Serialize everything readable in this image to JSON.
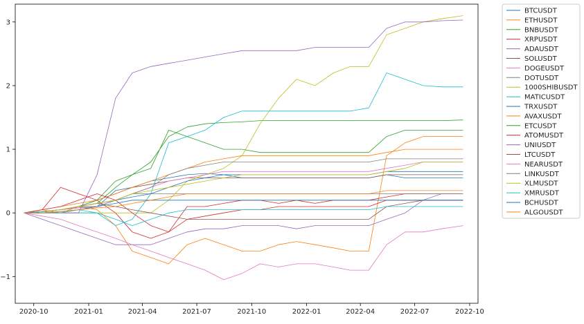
{
  "chart_data": {
    "type": "line",
    "title": "",
    "xlabel": "",
    "ylabel": "",
    "grid": false,
    "legend_position": "outside-right",
    "xlim": [
      "2020-08-31",
      "2022-10-15"
    ],
    "ylim": [
      -1.42,
      3.28
    ],
    "x_ticks": [
      "2020-10",
      "2021-01",
      "2021-04",
      "2021-07",
      "2021-10",
      "2022-01",
      "2022-04",
      "2022-07",
      "2022-10"
    ],
    "y_ticks": [
      -1,
      0,
      1,
      2,
      3
    ],
    "x_dates": [
      "2020-09-15",
      "2020-10-15",
      "2020-11-15",
      "2020-12-15",
      "2021-01-15",
      "2021-02-15",
      "2021-03-15",
      "2021-04-15",
      "2021-05-15",
      "2021-06-15",
      "2021-07-15",
      "2021-08-15",
      "2021-09-15",
      "2021-10-15",
      "2021-11-15",
      "2021-12-15",
      "2022-01-15",
      "2022-02-15",
      "2022-03-15",
      "2022-04-15",
      "2022-05-15",
      "2022-06-15",
      "2022-07-15",
      "2022-08-15",
      "2022-09-20"
    ],
    "series": [
      {
        "name": "BTCUSDT",
        "color": "#1f77b4",
        "values": [
          0.0,
          0.02,
          0.05,
          0.08,
          0.1,
          0.35,
          0.4,
          0.5,
          0.55,
          0.6,
          0.62,
          0.6,
          0.55,
          0.55,
          0.55,
          0.55,
          0.55,
          0.55,
          0.55,
          0.55,
          0.6,
          0.55,
          0.55,
          0.55,
          0.55
        ]
      },
      {
        "name": "ETHUSDT",
        "color": "#ff7f0e",
        "values": [
          0.0,
          0.05,
          0.0,
          0.1,
          0.05,
          -0.2,
          -0.6,
          -0.7,
          -0.8,
          -0.5,
          -0.4,
          -0.5,
          -0.6,
          -0.6,
          -0.5,
          -0.45,
          -0.5,
          -0.55,
          -0.6,
          -0.6,
          0.9,
          1.1,
          1.2,
          1.2,
          1.2
        ]
      },
      {
        "name": "BNBUSDT",
        "color": "#2ca02c",
        "values": [
          0.0,
          0.02,
          0.05,
          0.1,
          0.15,
          0.4,
          0.6,
          0.8,
          1.2,
          1.35,
          1.4,
          1.42,
          1.43,
          1.45,
          1.45,
          1.45,
          1.45,
          1.45,
          1.45,
          1.45,
          1.45,
          1.45,
          1.45,
          1.45,
          1.46
        ]
      },
      {
        "name": "XRPUSDT",
        "color": "#d62728",
        "values": [
          0.0,
          0.05,
          0.4,
          0.3,
          0.2,
          0.0,
          -0.3,
          -0.4,
          -0.3,
          0.1,
          0.1,
          0.15,
          0.2,
          0.2,
          0.15,
          0.2,
          0.15,
          0.2,
          0.2,
          0.2,
          0.25,
          0.3,
          0.3,
          0.3,
          0.3
        ]
      },
      {
        "name": "ADAUSDT",
        "color": "#9467bd",
        "values": [
          0.0,
          -0.1,
          -0.2,
          -0.3,
          -0.4,
          -0.5,
          -0.5,
          -0.5,
          -0.4,
          -0.3,
          -0.25,
          -0.25,
          -0.2,
          -0.2,
          -0.2,
          -0.25,
          -0.2,
          -0.2,
          -0.2,
          -0.2,
          -0.1,
          0.0,
          0.2,
          0.3,
          0.3
        ]
      },
      {
        "name": "SOLUSDT",
        "color": "#8c564b",
        "values": [
          0.0,
          0.02,
          0.05,
          0.1,
          0.2,
          0.3,
          0.4,
          0.45,
          0.5,
          0.55,
          0.55,
          0.55,
          0.55,
          0.55,
          0.55,
          0.55,
          0.55,
          0.55,
          0.55,
          0.55,
          0.6,
          0.6,
          0.6,
          0.6,
          0.6
        ]
      },
      {
        "name": "DOGEUSDT",
        "color": "#e377c2",
        "values": [
          0.0,
          -0.05,
          -0.1,
          -0.2,
          -0.3,
          -0.4,
          -0.5,
          -0.6,
          -0.7,
          -0.8,
          -0.9,
          -1.05,
          -0.95,
          -0.8,
          -0.85,
          -0.8,
          -0.8,
          -0.85,
          -0.9,
          -0.9,
          -0.5,
          -0.3,
          -0.3,
          -0.25,
          -0.2
        ]
      },
      {
        "name": "DOTUSDT",
        "color": "#7f7f7f",
        "values": [
          0.0,
          0.0,
          0.02,
          0.05,
          0.1,
          0.2,
          0.3,
          0.3,
          0.3,
          0.3,
          0.3,
          0.3,
          0.3,
          0.3,
          0.3,
          0.3,
          0.3,
          0.3,
          0.3,
          0.3,
          0.3,
          0.3,
          0.3,
          0.3,
          0.3
        ]
      },
      {
        "name": "1000SHIBUSDT",
        "color": "#bcbd22",
        "values": [
          0.0,
          0.0,
          0.0,
          0.0,
          0.0,
          0.0,
          0.0,
          0.0,
          0.2,
          0.5,
          0.6,
          0.7,
          0.9,
          1.4,
          1.8,
          2.1,
          2.0,
          2.2,
          2.3,
          2.3,
          2.8,
          2.9,
          3.0,
          3.05,
          3.1
        ]
      },
      {
        "name": "MATICUSDT",
        "color": "#17becf",
        "values": [
          0.0,
          0.0,
          0.0,
          0.0,
          0.0,
          -0.2,
          -0.1,
          0.3,
          1.1,
          1.2,
          1.3,
          1.5,
          1.6,
          1.6,
          1.6,
          1.6,
          1.6,
          1.6,
          1.6,
          1.65,
          2.2,
          2.1,
          2.0,
          1.98,
          1.98
        ]
      },
      {
        "name": "TRXUSDT",
        "color": "#1f77b4",
        "values": [
          0.0,
          0.02,
          0.05,
          0.1,
          0.15,
          0.2,
          0.25,
          0.3,
          0.4,
          0.5,
          0.55,
          0.6,
          0.6,
          0.6,
          0.6,
          0.6,
          0.6,
          0.6,
          0.6,
          0.6,
          0.65,
          0.65,
          0.65,
          0.65,
          0.65
        ]
      },
      {
        "name": "AVAXUSDT",
        "color": "#ff7f0e",
        "values": [
          0.0,
          0.05,
          0.1,
          0.15,
          0.2,
          0.3,
          0.4,
          0.5,
          0.6,
          0.7,
          0.8,
          0.85,
          0.9,
          0.9,
          0.9,
          0.9,
          0.9,
          0.9,
          0.9,
          0.9,
          0.95,
          1.0,
          1.0,
          1.0,
          1.0
        ]
      },
      {
        "name": "ETCUSDT",
        "color": "#2ca02c",
        "values": [
          0.0,
          0.02,
          0.05,
          0.1,
          0.2,
          0.5,
          0.6,
          0.7,
          1.3,
          1.2,
          1.1,
          1.0,
          1.0,
          0.95,
          0.95,
          0.95,
          0.95,
          0.95,
          0.95,
          0.95,
          1.2,
          1.3,
          1.3,
          1.3,
          1.3
        ]
      },
      {
        "name": "ATOMUSDT",
        "color": "#d62728",
        "values": [
          0.0,
          0.05,
          0.1,
          0.2,
          0.3,
          0.2,
          0.0,
          -0.2,
          -0.3,
          -0.1,
          -0.05,
          0.0,
          0.05,
          0.05,
          0.1,
          0.1,
          0.1,
          0.1,
          0.1,
          0.1,
          0.2,
          0.2,
          0.2,
          0.2,
          0.2
        ]
      },
      {
        "name": "UNIUSDT",
        "color": "#9467bd",
        "values": [
          0.0,
          0.0,
          0.0,
          0.0,
          0.6,
          1.8,
          2.2,
          2.3,
          2.35,
          2.4,
          2.45,
          2.5,
          2.55,
          2.55,
          2.55,
          2.55,
          2.6,
          2.6,
          2.6,
          2.6,
          2.9,
          3.0,
          3.0,
          3.02,
          3.03
        ]
      },
      {
        "name": "LTCUSDT",
        "color": "#8c564b",
        "values": [
          0.0,
          0.02,
          0.05,
          0.1,
          0.15,
          0.1,
          0.05,
          0.0,
          -0.05,
          -0.1,
          -0.1,
          -0.1,
          -0.1,
          -0.1,
          -0.1,
          -0.1,
          -0.1,
          -0.1,
          -0.1,
          -0.1,
          0.1,
          0.15,
          0.2,
          0.2,
          0.2
        ]
      },
      {
        "name": "NEARUSDT",
        "color": "#e377c2",
        "values": [
          0.0,
          0.02,
          0.05,
          0.08,
          0.1,
          0.2,
          0.3,
          0.4,
          0.5,
          0.55,
          0.6,
          0.65,
          0.65,
          0.65,
          0.65,
          0.65,
          0.65,
          0.65,
          0.65,
          0.65,
          0.7,
          0.75,
          0.8,
          0.8,
          0.8
        ]
      },
      {
        "name": "LINKUSDT",
        "color": "#7f7f7f",
        "values": [
          0.0,
          0.02,
          0.05,
          0.1,
          0.1,
          0.2,
          0.3,
          0.4,
          0.6,
          0.7,
          0.75,
          0.8,
          0.8,
          0.8,
          0.8,
          0.8,
          0.8,
          0.8,
          0.8,
          0.8,
          0.85,
          0.85,
          0.85,
          0.85,
          0.85
        ]
      },
      {
        "name": "XLMUSDT",
        "color": "#bcbd22",
        "values": [
          0.0,
          0.02,
          0.05,
          0.1,
          0.15,
          0.2,
          0.3,
          0.35,
          0.4,
          0.45,
          0.5,
          0.55,
          0.6,
          0.6,
          0.6,
          0.6,
          0.6,
          0.6,
          0.6,
          0.6,
          0.65,
          0.7,
          0.8,
          0.8,
          0.8
        ]
      },
      {
        "name": "XMRUSDT",
        "color": "#17becf",
        "values": [
          0.0,
          0.02,
          0.0,
          0.05,
          0.0,
          -0.1,
          -0.2,
          -0.1,
          0.0,
          0.05,
          0.05,
          0.05,
          0.05,
          0.05,
          0.05,
          0.05,
          0.05,
          0.05,
          0.05,
          0.05,
          0.1,
          0.1,
          0.1,
          0.1,
          0.1
        ]
      },
      {
        "name": "BCHUSDT",
        "color": "#1f77b4",
        "values": [
          0.0,
          0.0,
          0.02,
          0.05,
          0.1,
          0.15,
          0.2,
          0.2,
          0.2,
          0.2,
          0.2,
          0.2,
          0.2,
          0.2,
          0.2,
          0.2,
          0.2,
          0.2,
          0.2,
          0.2,
          0.2,
          0.2,
          0.2,
          0.2,
          0.2
        ]
      },
      {
        "name": "ALGOUSDT",
        "color": "#ff7f0e",
        "values": [
          0.0,
          0.0,
          0.02,
          0.05,
          0.08,
          0.1,
          0.15,
          0.2,
          0.25,
          0.3,
          0.3,
          0.3,
          0.3,
          0.3,
          0.3,
          0.3,
          0.3,
          0.3,
          0.3,
          0.3,
          0.35,
          0.35,
          0.35,
          0.35,
          0.35
        ]
      }
    ]
  }
}
